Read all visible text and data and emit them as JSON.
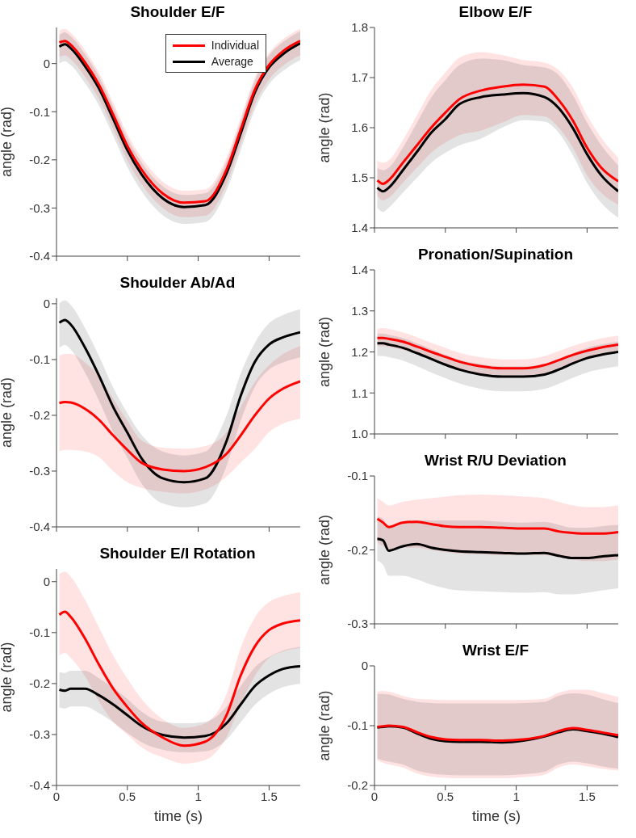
{
  "chart_data": [
    {
      "type": "line",
      "title": "Shoulder E/F",
      "ylabel": "angle (rad)",
      "legend": "top right",
      "tick_labels": "y",
      "x": [
        0.02,
        0.06,
        0.1,
        0.2,
        0.3,
        0.4,
        0.5,
        0.6,
        0.75,
        0.9,
        1.05,
        1.2,
        1.3,
        1.4,
        1.5,
        1.6,
        1.72
      ],
      "xlim": [
        0,
        1.72
      ],
      "xticks": [
        0,
        0.5,
        1,
        1.5
      ],
      "ylim": [
        -0.4,
        0.075
      ],
      "yticks": [
        -0.4,
        -0.3,
        -0.2,
        -0.1,
        0
      ],
      "series": [
        {
          "name": "Individual",
          "color": "#ff0000",
          "values": [
            0.044,
            0.047,
            0.039,
            0.003,
            -0.044,
            -0.106,
            -0.171,
            -0.22,
            -0.27,
            -0.289,
            -0.286,
            -0.22,
            -0.137,
            -0.054,
            -0.003,
            0.026,
            0.047
          ],
          "lower": [
            0.014,
            0.017,
            0.009,
            -0.027,
            -0.074,
            -0.136,
            -0.201,
            -0.25,
            -0.3,
            -0.319,
            -0.316,
            -0.25,
            -0.167,
            -0.084,
            -0.033,
            -0.004,
            0.017
          ],
          "upper": [
            0.069,
            0.072,
            0.064,
            0.028,
            -0.019,
            -0.081,
            -0.146,
            -0.195,
            -0.245,
            -0.264,
            -0.261,
            -0.195,
            -0.112,
            -0.029,
            0.022,
            0.051,
            0.072
          ]
        },
        {
          "name": "Average",
          "color": "#000000",
          "values": [
            0.035,
            0.04,
            0.032,
            -0.005,
            -0.052,
            -0.115,
            -0.18,
            -0.23,
            -0.28,
            -0.298,
            -0.294,
            -0.228,
            -0.145,
            -0.06,
            -0.008,
            0.02,
            0.042
          ],
          "lower": [
            0.0,
            0.005,
            -0.003,
            -0.04,
            -0.087,
            -0.15,
            -0.215,
            -0.265,
            -0.315,
            -0.333,
            -0.329,
            -0.263,
            -0.18,
            -0.095,
            -0.043,
            -0.015,
            0.007
          ],
          "upper": [
            0.06,
            0.065,
            0.057,
            0.02,
            -0.027,
            -0.09,
            -0.155,
            -0.205,
            -0.255,
            -0.273,
            -0.269,
            -0.203,
            -0.12,
            -0.035,
            0.017,
            0.045,
            0.067
          ]
        }
      ]
    },
    {
      "type": "line",
      "title": "Shoulder Ab/Ad",
      "ylabel": "angle (rad)",
      "tick_labels": "y",
      "x": [
        0.02,
        0.06,
        0.1,
        0.2,
        0.3,
        0.4,
        0.5,
        0.6,
        0.75,
        0.9,
        1.05,
        1.2,
        1.3,
        1.4,
        1.5,
        1.6,
        1.72
      ],
      "xlim": [
        0,
        1.72
      ],
      "xticks": [
        0,
        0.5,
        1,
        1.5
      ],
      "ylim": [
        -0.4,
        0.01
      ],
      "yticks": [
        -0.4,
        -0.3,
        -0.2,
        -0.1,
        0
      ],
      "series": [
        {
          "color": "#ff0000",
          "values": [
            -0.178,
            -0.176,
            -0.177,
            -0.188,
            -0.208,
            -0.236,
            -0.262,
            -0.285,
            -0.297,
            -0.3,
            -0.293,
            -0.269,
            -0.236,
            -0.2,
            -0.17,
            -0.152,
            -0.139
          ],
          "lower": [
            -0.264,
            -0.262,
            -0.262,
            -0.265,
            -0.275,
            -0.3,
            -0.32,
            -0.33,
            -0.337,
            -0.34,
            -0.333,
            -0.31,
            -0.285,
            -0.26,
            -0.23,
            -0.215,
            -0.206
          ],
          "upper": [
            -0.093,
            -0.09,
            -0.09,
            -0.105,
            -0.13,
            -0.17,
            -0.21,
            -0.245,
            -0.258,
            -0.26,
            -0.255,
            -0.23,
            -0.185,
            -0.14,
            -0.11,
            -0.09,
            -0.076
          ]
        },
        {
          "color": "#000000",
          "values": [
            -0.034,
            -0.029,
            -0.037,
            -0.078,
            -0.129,
            -0.185,
            -0.231,
            -0.277,
            -0.313,
            -0.32,
            -0.313,
            -0.246,
            -0.165,
            -0.104,
            -0.073,
            -0.06,
            -0.051
          ],
          "lower": [
            -0.079,
            -0.074,
            -0.082,
            -0.123,
            -0.174,
            -0.23,
            -0.276,
            -0.322,
            -0.358,
            -0.365,
            -0.358,
            -0.291,
            -0.21,
            -0.149,
            -0.118,
            -0.105,
            -0.096
          ],
          "upper": [
            0.001,
            0.006,
            -0.002,
            -0.043,
            -0.094,
            -0.15,
            -0.196,
            -0.235,
            -0.265,
            -0.272,
            -0.265,
            -0.2,
            -0.125,
            -0.07,
            -0.035,
            -0.02,
            -0.01
          ]
        }
      ]
    },
    {
      "type": "line",
      "title": "Shoulder E/I Rotation",
      "xlabel": "time (s)",
      "ylabel": "angle (rad)",
      "x": [
        0.02,
        0.06,
        0.1,
        0.2,
        0.3,
        0.4,
        0.5,
        0.6,
        0.75,
        0.9,
        1.05,
        1.2,
        1.3,
        1.4,
        1.5,
        1.6,
        1.72
      ],
      "xlim": [
        0,
        1.72
      ],
      "xticks": [
        0,
        0.5,
        1,
        1.5
      ],
      "ylim": [
        -0.4,
        0.025
      ],
      "yticks": [
        -0.4,
        -0.3,
        -0.2,
        -0.1,
        0
      ],
      "series": [
        {
          "color": "#ff0000",
          "values": [
            -0.065,
            -0.059,
            -0.069,
            -0.111,
            -0.163,
            -0.21,
            -0.246,
            -0.277,
            -0.306,
            -0.322,
            -0.314,
            -0.262,
            -0.184,
            -0.127,
            -0.095,
            -0.082,
            -0.076
          ],
          "lower": [
            -0.145,
            -0.14,
            -0.15,
            -0.185,
            -0.235,
            -0.275,
            -0.3,
            -0.325,
            -0.345,
            -0.357,
            -0.35,
            -0.305,
            -0.24,
            -0.185,
            -0.15,
            -0.137,
            -0.13
          ],
          "upper": [
            0.015,
            0.02,
            0.01,
            -0.035,
            -0.09,
            -0.145,
            -0.19,
            -0.23,
            -0.27,
            -0.287,
            -0.278,
            -0.22,
            -0.13,
            -0.07,
            -0.04,
            -0.028,
            -0.021
          ]
        },
        {
          "color": "#000000",
          "values": [
            -0.212,
            -0.214,
            -0.21,
            -0.21,
            -0.223,
            -0.241,
            -0.262,
            -0.283,
            -0.301,
            -0.306,
            -0.303,
            -0.278,
            -0.241,
            -0.205,
            -0.184,
            -0.171,
            -0.166
          ],
          "lower": [
            -0.247,
            -0.249,
            -0.245,
            -0.245,
            -0.258,
            -0.276,
            -0.297,
            -0.315,
            -0.33,
            -0.335,
            -0.333,
            -0.31,
            -0.276,
            -0.242,
            -0.22,
            -0.207,
            -0.2
          ],
          "upper": [
            -0.177,
            -0.179,
            -0.175,
            -0.175,
            -0.19,
            -0.208,
            -0.23,
            -0.255,
            -0.275,
            -0.278,
            -0.275,
            -0.245,
            -0.205,
            -0.168,
            -0.148,
            -0.135,
            -0.128
          ]
        }
      ]
    },
    {
      "type": "line",
      "title": "Elbow E/F",
      "ylabel": "angle (rad)",
      "tick_labels": "y",
      "x": [
        0.02,
        0.06,
        0.1,
        0.2,
        0.3,
        0.4,
        0.5,
        0.6,
        0.75,
        0.9,
        1.05,
        1.2,
        1.3,
        1.4,
        1.5,
        1.6,
        1.72
      ],
      "xlim": [
        0,
        1.72
      ],
      "xticks": [
        0,
        0.5,
        1,
        1.5
      ],
      "ylim": [
        1.4,
        1.8
      ],
      "yticks": [
        1.4,
        1.5,
        1.6,
        1.7,
        1.8
      ],
      "series": [
        {
          "color": "#ff0000",
          "values": [
            1.495,
            1.488,
            1.495,
            1.53,
            1.565,
            1.6,
            1.63,
            1.657,
            1.674,
            1.682,
            1.686,
            1.682,
            1.655,
            1.614,
            1.56,
            1.52,
            1.493
          ],
          "lower": [
            1.465,
            1.455,
            1.46,
            1.49,
            1.52,
            1.55,
            1.57,
            1.585,
            1.594,
            1.61,
            1.625,
            1.622,
            1.6,
            1.56,
            1.505,
            1.47,
            1.446
          ],
          "upper": [
            1.535,
            1.53,
            1.535,
            1.575,
            1.625,
            1.675,
            1.71,
            1.74,
            1.751,
            1.745,
            1.735,
            1.73,
            1.715,
            1.68,
            1.625,
            1.58,
            1.54
          ]
        },
        {
          "color": "#000000",
          "values": [
            1.48,
            1.473,
            1.48,
            1.515,
            1.552,
            1.59,
            1.617,
            1.647,
            1.661,
            1.666,
            1.669,
            1.661,
            1.639,
            1.599,
            1.547,
            1.505,
            1.473
          ],
          "lower": [
            1.44,
            1.432,
            1.44,
            1.47,
            1.5,
            1.53,
            1.55,
            1.565,
            1.578,
            1.6,
            1.615,
            1.612,
            1.59,
            1.545,
            1.49,
            1.45,
            1.42
          ],
          "upper": [
            1.52,
            1.515,
            1.52,
            1.56,
            1.61,
            1.66,
            1.695,
            1.725,
            1.738,
            1.735,
            1.725,
            1.72,
            1.705,
            1.665,
            1.61,
            1.565,
            1.525
          ]
        }
      ]
    },
    {
      "type": "line",
      "title": "Pronation/Supination",
      "ylabel": "angle (rad)",
      "tick_labels": "y",
      "x": [
        0.02,
        0.06,
        0.1,
        0.2,
        0.3,
        0.4,
        0.5,
        0.6,
        0.75,
        0.9,
        1.05,
        1.2,
        1.3,
        1.4,
        1.5,
        1.6,
        1.72
      ],
      "xlim": [
        0,
        1.72
      ],
      "xticks": [
        0,
        0.5,
        1,
        1.5
      ],
      "ylim": [
        1.0,
        1.4
      ],
      "yticks": [
        {
          "value": 1,
          "label": "1.0"
        },
        1.1,
        1.2,
        1.3,
        1.4
      ],
      "series": [
        {
          "color": "#ff0000",
          "values": [
            1.234,
            1.234,
            1.232,
            1.225,
            1.213,
            1.2,
            1.188,
            1.176,
            1.165,
            1.16,
            1.16,
            1.168,
            1.18,
            1.193,
            1.203,
            1.211,
            1.218
          ],
          "lower": [
            1.214,
            1.214,
            1.212,
            1.205,
            1.193,
            1.18,
            1.168,
            1.156,
            1.145,
            1.14,
            1.14,
            1.148,
            1.16,
            1.173,
            1.183,
            1.191,
            1.198
          ],
          "upper": [
            1.256,
            1.258,
            1.256,
            1.248,
            1.236,
            1.222,
            1.21,
            1.198,
            1.187,
            1.182,
            1.182,
            1.19,
            1.202,
            1.215,
            1.225,
            1.233,
            1.24
          ]
        },
        {
          "color": "#000000",
          "values": [
            1.221,
            1.221,
            1.218,
            1.21,
            1.197,
            1.183,
            1.169,
            1.157,
            1.145,
            1.14,
            1.14,
            1.145,
            1.157,
            1.172,
            1.185,
            1.193,
            1.2
          ],
          "lower": [
            1.19,
            1.19,
            1.187,
            1.179,
            1.165,
            1.15,
            1.136,
            1.123,
            1.11,
            1.104,
            1.104,
            1.11,
            1.122,
            1.137,
            1.15,
            1.158,
            1.165
          ],
          "upper": [
            1.245,
            1.245,
            1.242,
            1.234,
            1.221,
            1.207,
            1.193,
            1.181,
            1.17,
            1.165,
            1.165,
            1.17,
            1.182,
            1.197,
            1.21,
            1.218,
            1.225
          ]
        }
      ]
    },
    {
      "type": "line",
      "title": "Wrist R/U Deviation",
      "ylabel": "angle (rad)",
      "tick_labels": "y",
      "x": [
        0.02,
        0.06,
        0.1,
        0.2,
        0.3,
        0.4,
        0.5,
        0.6,
        0.75,
        0.9,
        1.05,
        1.2,
        1.3,
        1.4,
        1.5,
        1.6,
        1.72
      ],
      "xlim": [
        0,
        1.72
      ],
      "xticks": [
        0,
        0.5,
        1,
        1.5
      ],
      "ylim": [
        -0.3,
        -0.1
      ],
      "yticks": [
        -0.3,
        -0.2,
        -0.1
      ],
      "series": [
        {
          "color": "#ff0000",
          "values": [
            -0.158,
            -0.163,
            -0.169,
            -0.163,
            -0.162,
            -0.165,
            -0.168,
            -0.169,
            -0.169,
            -0.17,
            -0.171,
            -0.171,
            -0.175,
            -0.177,
            -0.178,
            -0.178,
            -0.176
          ],
          "lower": [
            -0.19,
            -0.195,
            -0.2,
            -0.197,
            -0.197,
            -0.2,
            -0.203,
            -0.205,
            -0.206,
            -0.207,
            -0.207,
            -0.207,
            -0.21,
            -0.213,
            -0.215,
            -0.215,
            -0.213
          ],
          "upper": [
            -0.13,
            -0.135,
            -0.14,
            -0.135,
            -0.132,
            -0.13,
            -0.128,
            -0.126,
            -0.125,
            -0.126,
            -0.128,
            -0.13,
            -0.135,
            -0.14,
            -0.142,
            -0.142,
            -0.14
          ]
        },
        {
          "color": "#000000",
          "values": [
            -0.185,
            -0.187,
            -0.201,
            -0.195,
            -0.192,
            -0.197,
            -0.2,
            -0.202,
            -0.203,
            -0.204,
            -0.205,
            -0.204,
            -0.208,
            -0.211,
            -0.211,
            -0.209,
            -0.207
          ],
          "lower": [
            -0.215,
            -0.22,
            -0.235,
            -0.235,
            -0.24,
            -0.247,
            -0.252,
            -0.255,
            -0.256,
            -0.257,
            -0.258,
            -0.257,
            -0.26,
            -0.26,
            -0.258,
            -0.255,
            -0.252
          ],
          "upper": [
            -0.155,
            -0.158,
            -0.17,
            -0.165,
            -0.16,
            -0.16,
            -0.16,
            -0.16,
            -0.16,
            -0.162,
            -0.163,
            -0.162,
            -0.166,
            -0.17,
            -0.17,
            -0.168,
            -0.166
          ]
        }
      ]
    },
    {
      "type": "line",
      "title": "Wrist E/F",
      "xlabel": "time (s)",
      "ylabel": "angle (rad)",
      "x": [
        0.02,
        0.06,
        0.1,
        0.2,
        0.3,
        0.4,
        0.5,
        0.6,
        0.75,
        0.9,
        1.05,
        1.2,
        1.3,
        1.4,
        1.5,
        1.6,
        1.72
      ],
      "xlim": [
        0,
        1.72
      ],
      "xticks": [
        0,
        0.5,
        1,
        1.5
      ],
      "ylim": [
        -0.2,
        0
      ],
      "yticks": [
        -0.2,
        -0.1,
        0
      ],
      "series": [
        {
          "color": "#ff0000",
          "values": [
            -0.102,
            -0.101,
            -0.1,
            -0.102,
            -0.111,
            -0.119,
            -0.123,
            -0.124,
            -0.124,
            -0.125,
            -0.123,
            -0.117,
            -0.109,
            -0.104,
            -0.107,
            -0.111,
            -0.116
          ],
          "lower": [
            -0.158,
            -0.162,
            -0.165,
            -0.17,
            -0.18,
            -0.185,
            -0.187,
            -0.188,
            -0.188,
            -0.188,
            -0.186,
            -0.182,
            -0.17,
            -0.165,
            -0.168,
            -0.172,
            -0.175
          ],
          "upper": [
            -0.043,
            -0.042,
            -0.043,
            -0.05,
            -0.055,
            -0.056,
            -0.057,
            -0.057,
            -0.057,
            -0.057,
            -0.057,
            -0.055,
            -0.045,
            -0.04,
            -0.04,
            -0.045,
            -0.052
          ]
        },
        {
          "color": "#000000",
          "values": [
            -0.103,
            -0.102,
            -0.101,
            -0.103,
            -0.113,
            -0.122,
            -0.126,
            -0.127,
            -0.127,
            -0.128,
            -0.125,
            -0.118,
            -0.111,
            -0.106,
            -0.109,
            -0.113,
            -0.119
          ],
          "lower": [
            -0.155,
            -0.158,
            -0.16,
            -0.165,
            -0.175,
            -0.18,
            -0.182,
            -0.183,
            -0.183,
            -0.183,
            -0.181,
            -0.177,
            -0.165,
            -0.16,
            -0.163,
            -0.168,
            -0.172
          ],
          "upper": [
            -0.047,
            -0.047,
            -0.048,
            -0.055,
            -0.06,
            -0.062,
            -0.063,
            -0.063,
            -0.063,
            -0.063,
            -0.062,
            -0.06,
            -0.05,
            -0.046,
            -0.048,
            -0.055,
            -0.062
          ]
        }
      ]
    }
  ]
}
